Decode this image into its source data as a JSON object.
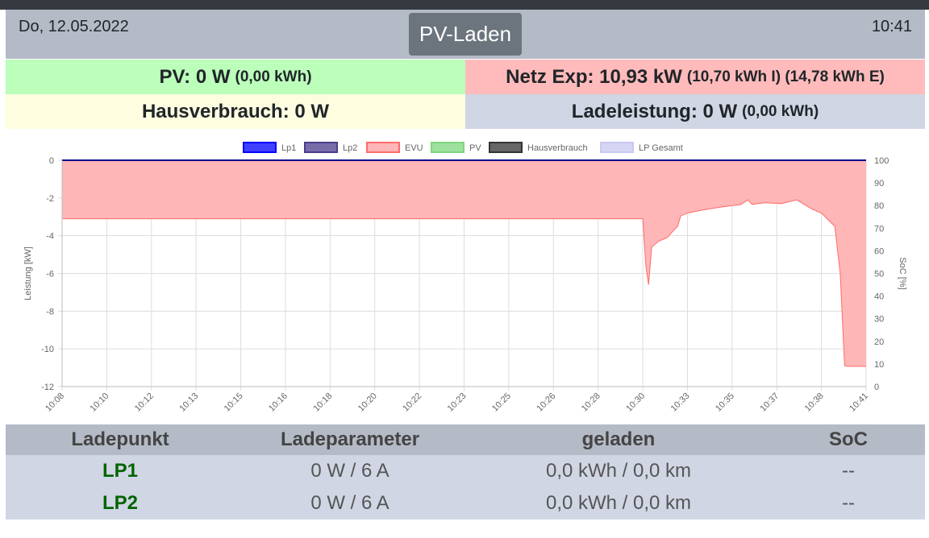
{
  "header": {
    "date": "Do, 12.05.2022",
    "mode_button": "PV-Laden",
    "time": "10:41"
  },
  "status": {
    "pv_main": "PV: 0 W",
    "pv_sub": "(0,00 kWh)",
    "netz_main": "Netz Exp: 10,93 kW",
    "netz_sub": "(10,70 kWh I) (14,78 kWh E)",
    "haus_main": "Hausverbrauch: 0 W",
    "lade_main": "Ladeleistung: 0 W",
    "lade_sub": "(0,00 kWh)"
  },
  "chart_data": {
    "type": "area",
    "xlabel": "",
    "ylabel": "Leistung [kW]",
    "y2label": "SoC [%]",
    "ylim": [
      -12,
      0
    ],
    "y2lim": [
      0,
      100
    ],
    "grid": true,
    "legend_position": "top",
    "categories": [
      "10:08",
      "10:10",
      "10:12",
      "10:13",
      "10:15",
      "10:16",
      "10:18",
      "10:20",
      "10:22",
      "10:23",
      "10:25",
      "10:26",
      "10:28",
      "10:30",
      "10:33",
      "10:35",
      "10:37",
      "10:38",
      "10:41"
    ],
    "yticks": [
      "0",
      "-2",
      "-4",
      "-6",
      "-8",
      "-10",
      "-12"
    ],
    "y2ticks": [
      "100",
      "90",
      "80",
      "70",
      "60",
      "50",
      "40",
      "30",
      "20",
      "10",
      "0"
    ],
    "series": [
      {
        "name": "Lp1",
        "color": "#0000ff",
        "values": [
          0,
          0,
          0,
          0,
          0,
          0,
          0,
          0,
          0,
          0,
          0,
          0,
          0,
          0,
          0,
          0,
          0,
          0,
          0
        ]
      },
      {
        "name": "Lp2",
        "color": "#4b3c8c",
        "values": [
          0,
          0,
          0,
          0,
          0,
          0,
          0,
          0,
          0,
          0,
          0,
          0,
          0,
          0,
          0,
          0,
          0,
          0,
          0
        ]
      },
      {
        "name": "EVU",
        "color": "#ff6b6b",
        "fill": "#ffb6b6",
        "x": [
          0,
          13.0,
          13.07,
          13.13,
          13.2,
          13.35,
          13.55,
          13.62,
          13.78,
          13.85,
          14.0,
          14.3,
          14.7,
          15.0,
          15.2,
          15.35,
          15.45,
          15.55,
          15.75,
          16.1,
          16.45,
          16.8,
          17.0,
          17.3,
          17.42,
          17.48,
          17.52,
          17.62,
          17.75,
          18.0
        ],
        "values": [
          -3.1,
          -3.1,
          -5.6,
          -6.6,
          -4.6,
          -4.3,
          -4.1,
          -3.9,
          -3.5,
          -2.95,
          -2.8,
          -2.65,
          -2.5,
          -2.4,
          -2.35,
          -2.1,
          -2.35,
          -2.3,
          -2.25,
          -2.3,
          -2.1,
          -2.6,
          -2.8,
          -3.5,
          -6,
          -9,
          -10.9,
          -10.93,
          -10.93,
          -10.93
        ]
      },
      {
        "name": "PV",
        "color": "#7ed67e",
        "values": [
          0,
          0,
          0,
          0,
          0,
          0,
          0,
          0,
          0,
          0,
          0,
          0,
          0,
          0,
          0,
          0,
          0,
          0,
          0
        ]
      },
      {
        "name": "Hausverbrauch",
        "color": "#333333",
        "values": [
          0,
          0,
          0,
          0,
          0,
          0,
          0,
          0,
          0,
          0,
          0,
          0,
          0,
          0,
          0,
          0,
          0,
          0,
          0
        ]
      },
      {
        "name": "LP Gesamt",
        "color": "#c8c8f0",
        "values": [
          0,
          0,
          0,
          0,
          0,
          0,
          0,
          0,
          0,
          0,
          0,
          0,
          0,
          0,
          0,
          0,
          0,
          0,
          0
        ]
      }
    ]
  },
  "table": {
    "headers": [
      "Ladepunkt",
      "Ladeparameter",
      "geladen",
      "SoC"
    ],
    "rows": [
      {
        "lp": "LP1",
        "param": "0 W / 6 A",
        "geladen": "0,0 kWh / 0,0 km",
        "soc": "--"
      },
      {
        "lp": "LP2",
        "param": "0 W / 6 A",
        "geladen": "0,0 kWh / 0,0 km",
        "soc": "--"
      }
    ]
  }
}
